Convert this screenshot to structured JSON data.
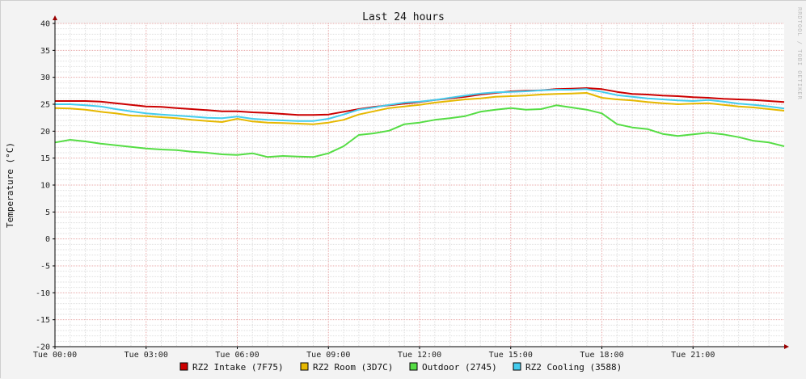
{
  "chart_data": {
    "type": "line",
    "title": "Last 24 hours",
    "ylabel": "Temperature (°C)",
    "xlabel": "",
    "watermark": "RRDTOOL / TOBI OETIKER",
    "ylim": [
      -20,
      40
    ],
    "ytick_step": 5,
    "yminor_step": 1,
    "xlim_hours": [
      0,
      24.0
    ],
    "x_ticks": [
      {
        "hour": 0,
        "label": "Tue 00:00"
      },
      {
        "hour": 3,
        "label": "Tue 03:00"
      },
      {
        "hour": 6,
        "label": "Tue 06:00"
      },
      {
        "hour": 9,
        "label": "Tue 09:00"
      },
      {
        "hour": 12,
        "label": "Tue 12:00"
      },
      {
        "hour": 15,
        "label": "Tue 15:00"
      },
      {
        "hour": 18,
        "label": "Tue 18:00"
      },
      {
        "hour": 21,
        "label": "Tue 21:00"
      }
    ],
    "grid": true,
    "legend_position": "bottom",
    "colors": {
      "background": "#f3f3f3",
      "plot_background": "#ffffff",
      "major_grid": "#e8a8a8",
      "minor_grid": "#dedede",
      "axis": "#000000",
      "arrow": "#990000"
    },
    "series": [
      {
        "name": "RZ2 Intake (7F75)",
        "color": "#cc0000",
        "x": [
          0,
          0.5,
          1,
          1.5,
          2,
          2.5,
          3,
          3.5,
          4,
          4.5,
          5,
          5.5,
          6,
          6.5,
          7,
          7.5,
          8,
          8.5,
          9,
          9.5,
          10,
          10.5,
          11,
          11.5,
          12,
          12.5,
          13,
          13.5,
          14,
          14.5,
          15,
          15.5,
          16,
          16.5,
          17,
          17.5,
          18,
          18.5,
          19,
          19.5,
          20,
          20.5,
          21,
          21.5,
          22,
          22.5,
          23,
          23.5,
          24
        ],
        "values": [
          25.6,
          25.6,
          25.6,
          25.5,
          25.2,
          24.9,
          24.6,
          24.5,
          24.3,
          24.1,
          23.9,
          23.7,
          23.7,
          23.5,
          23.4,
          23.2,
          23.0,
          23.0,
          23.1,
          23.6,
          24.1,
          24.5,
          24.8,
          25.1,
          25.4,
          25.8,
          26.1,
          26.4,
          26.8,
          27.1,
          27.4,
          27.5,
          27.6,
          27.8,
          27.9,
          28.0,
          27.8,
          27.3,
          26.9,
          26.8,
          26.6,
          26.5,
          26.3,
          26.2,
          26.0,
          25.9,
          25.8,
          25.6,
          25.4
        ]
      },
      {
        "name": "RZ2 Room (3D7C)",
        "color": "#e6b800",
        "x": [
          0,
          0.5,
          1,
          1.5,
          2,
          2.5,
          3,
          3.5,
          4,
          4.5,
          5,
          5.5,
          6,
          6.5,
          7,
          7.5,
          8,
          8.5,
          9,
          9.5,
          10,
          10.5,
          11,
          11.5,
          12,
          12.5,
          13,
          13.5,
          14,
          14.5,
          15,
          15.5,
          16,
          16.5,
          17,
          17.5,
          18,
          18.5,
          19,
          19.5,
          20,
          20.5,
          21,
          21.5,
          22,
          22.5,
          23,
          23.5,
          24
        ],
        "values": [
          24.3,
          24.2,
          24.0,
          23.6,
          23.3,
          22.9,
          22.8,
          22.6,
          22.4,
          22.1,
          21.9,
          21.7,
          22.3,
          21.8,
          21.6,
          21.5,
          21.4,
          21.3,
          21.6,
          22.1,
          23.1,
          23.7,
          24.3,
          24.6,
          24.9,
          25.3,
          25.6,
          25.9,
          26.1,
          26.4,
          26.5,
          26.6,
          26.8,
          26.9,
          27.0,
          27.1,
          26.2,
          25.9,
          25.7,
          25.4,
          25.2,
          25.0,
          25.1,
          25.2,
          24.9,
          24.6,
          24.4,
          24.1,
          23.8
        ]
      },
      {
        "name": "Outdoor (2745)",
        "color": "#55dd44",
        "x": [
          0,
          0.5,
          1,
          1.5,
          2,
          2.5,
          3,
          3.5,
          4,
          4.5,
          5,
          5.5,
          6,
          6.5,
          7,
          7.5,
          8,
          8.5,
          9,
          9.5,
          10,
          10.5,
          11,
          11.5,
          12,
          12.5,
          13,
          13.5,
          14,
          14.5,
          15,
          15.5,
          16,
          16.5,
          17,
          17.5,
          18,
          18.5,
          19,
          19.5,
          20,
          20.5,
          21,
          21.5,
          22,
          22.5,
          23,
          23.5,
          24
        ],
        "values": [
          17.9,
          18.4,
          18.1,
          17.7,
          17.4,
          17.1,
          16.8,
          16.6,
          16.5,
          16.2,
          16.0,
          15.7,
          15.6,
          15.9,
          15.2,
          15.4,
          15.3,
          15.2,
          15.9,
          17.2,
          19.3,
          19.6,
          20.1,
          21.3,
          21.6,
          22.1,
          22.4,
          22.8,
          23.6,
          24.0,
          24.3,
          24.0,
          24.1,
          24.8,
          24.4,
          24.0,
          23.3,
          21.3,
          20.7,
          20.4,
          19.5,
          19.1,
          19.4,
          19.7,
          19.4,
          18.9,
          18.2,
          17.9,
          17.2
        ]
      },
      {
        "name": "RZ2 Cooling (3588)",
        "color": "#44ccee",
        "x": [
          0,
          0.5,
          1,
          1.5,
          2,
          2.5,
          3,
          3.5,
          4,
          4.5,
          5,
          5.5,
          6,
          6.5,
          7,
          7.5,
          8,
          8.5,
          9,
          9.5,
          10,
          10.5,
          11,
          11.5,
          12,
          12.5,
          13,
          13.5,
          14,
          14.5,
          15,
          15.5,
          16,
          16.5,
          17,
          17.5,
          18,
          18.5,
          19,
          19.5,
          20,
          20.5,
          21,
          21.5,
          22,
          22.5,
          23,
          23.5,
          24
        ],
        "values": [
          25.0,
          25.0,
          24.8,
          24.6,
          24.1,
          23.7,
          23.3,
          23.1,
          22.9,
          22.7,
          22.5,
          22.4,
          22.7,
          22.3,
          22.1,
          22.0,
          21.9,
          21.9,
          22.3,
          23.1,
          24.0,
          24.4,
          24.9,
          25.3,
          25.5,
          25.8,
          26.2,
          26.6,
          27.0,
          27.2,
          27.3,
          27.4,
          27.6,
          27.7,
          27.7,
          27.8,
          27.3,
          26.7,
          26.4,
          26.1,
          25.9,
          25.7,
          25.6,
          25.8,
          25.5,
          25.1,
          24.9,
          24.6,
          24.2
        ]
      }
    ]
  }
}
